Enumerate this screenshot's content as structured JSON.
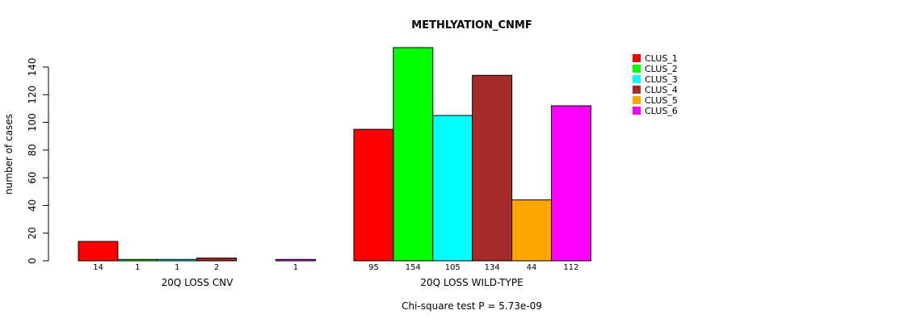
{
  "chart_data": {
    "type": "bar",
    "title": "METHLYATION_CNMF",
    "ylabel": "number of cases",
    "ylim": [
      0,
      140
    ],
    "yticks": [
      0,
      20,
      40,
      60,
      80,
      100,
      120,
      140
    ],
    "footer": "Chi-square test P = 5.73e-09",
    "legend_position": "top-right",
    "series": [
      {
        "name": "CLUS_1",
        "color": "#ff0000"
      },
      {
        "name": "CLUS_2",
        "color": "#00ff00"
      },
      {
        "name": "CLUS_3",
        "color": "#00ffff"
      },
      {
        "name": "CLUS_4",
        "color": "#a52a2a"
      },
      {
        "name": "CLUS_5",
        "color": "#ffa500"
      },
      {
        "name": "CLUS_6",
        "color": "#ff00ff"
      }
    ],
    "groups": [
      {
        "label": "20Q LOSS CNV",
        "values": [
          14,
          1,
          1,
          2,
          0,
          1
        ],
        "value_labels": [
          "14",
          "1",
          "1",
          "2",
          "",
          "1"
        ]
      },
      {
        "label": "20Q LOSS WILD-TYPE",
        "values": [
          95,
          154,
          105,
          134,
          44,
          112
        ],
        "value_labels": [
          "95",
          "154",
          "105",
          "134",
          "44",
          "112"
        ]
      }
    ]
  }
}
